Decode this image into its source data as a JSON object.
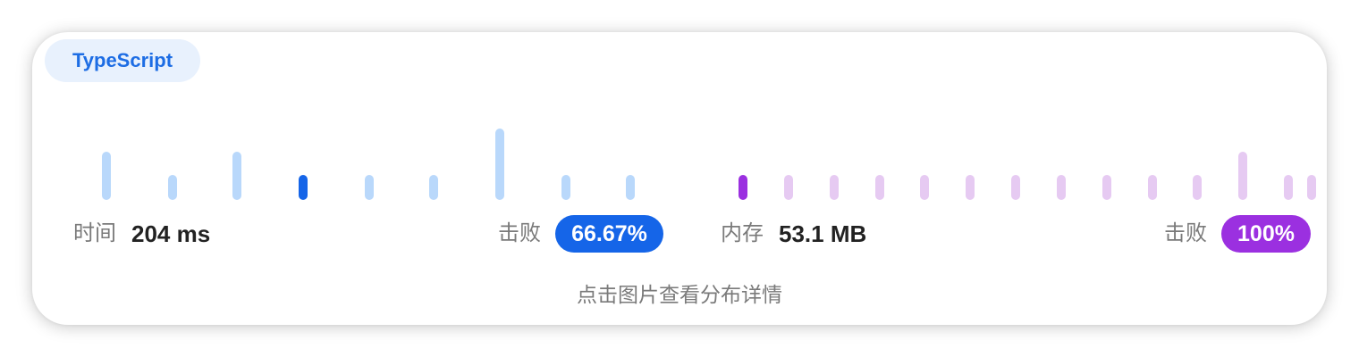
{
  "language": "TypeScript",
  "runtime": {
    "label": "时间",
    "value": "204 ms",
    "beats_label": "击败",
    "beats": "66.67%",
    "highlight_color": "#1565e8",
    "bar_color": "#b9d8fb",
    "distribution_levels": [
      2,
      1,
      2,
      1,
      1,
      1,
      3,
      1,
      1
    ],
    "current_index": 3
  },
  "memory": {
    "label": "内存",
    "value": "53.1 MB",
    "beats_label": "击败",
    "beats": "100%",
    "highlight_color": "#9b30e0",
    "bar_color": "#e6caf2",
    "distribution_levels": [
      1,
      1,
      1,
      1,
      1,
      1,
      1,
      1,
      1,
      1,
      1,
      2,
      1,
      1
    ],
    "current_index": 0
  },
  "hint": "点击图片查看分布详情"
}
